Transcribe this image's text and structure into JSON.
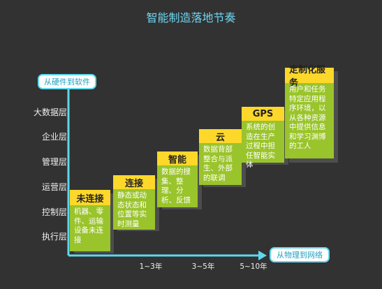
{
  "title": "智能制造落地节奏",
  "y_axis_label": "从硬件到软件",
  "x_axis_label": "从物理到网络",
  "layers": [
    "大数据层",
    "企业层",
    "管理层",
    "运营层",
    "控制层",
    "执行层"
  ],
  "timeline": [
    "1~3年",
    "3~5年",
    "5~10年"
  ],
  "steps": [
    {
      "name": "未连接",
      "desc": "机器、零件、运输设备未连接"
    },
    {
      "name": "连接",
      "desc": "静态或动态状态和位置等实时测量"
    },
    {
      "name": "智能",
      "desc": "数据的搜集、整理、分析、反馈"
    },
    {
      "name": "云",
      "desc": "数据背部整合与派生、外部的联调"
    },
    {
      "name": "GPS",
      "desc": "系统的创造在生产过程中担任智能实体"
    },
    {
      "name": "定制化服务",
      "desc": "用户和任务特定应用程序环境，以从各种资源中提供信息和学习渊博的工人"
    }
  ],
  "colors": {
    "accent": "#5fd7ee",
    "header": "#fdd82a",
    "body": "#9ac42b",
    "background": "#323232"
  }
}
